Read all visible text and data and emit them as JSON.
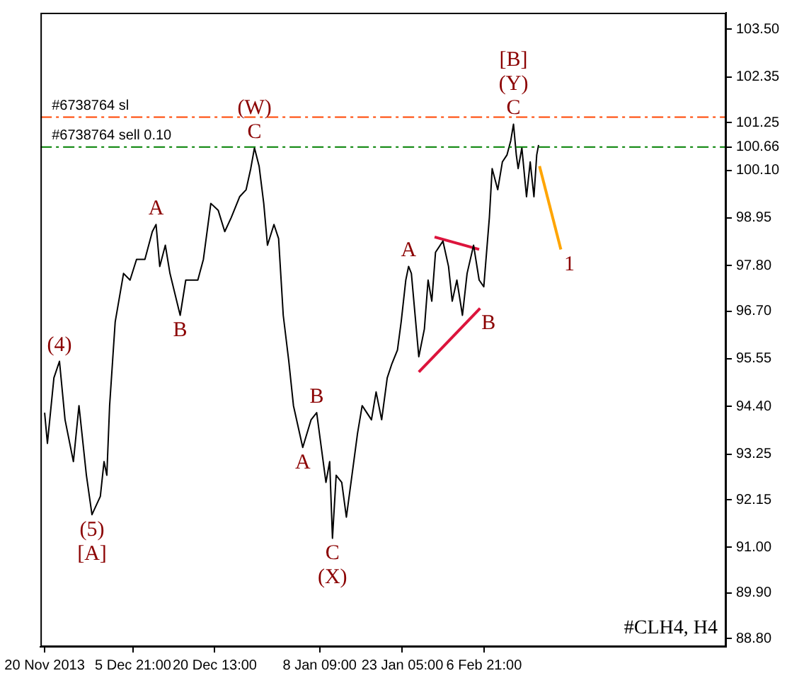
{
  "chart_data": {
    "type": "line",
    "x": [
      "2013-11-20T00:00",
      "2013-11-20T12:00",
      "2013-11-21T16:00",
      "2013-11-22T16:00",
      "2013-11-23T16:00",
      "2013-11-25T04:00",
      "2013-11-26T04:00",
      "2013-11-27T12:00",
      "2013-11-28T12:00",
      "2013-11-30T00:00",
      "2013-11-30T16:00",
      "2013-12-01T04:00",
      "2013-12-01T16:00",
      "2013-12-02T16:00",
      "2013-12-04T04:00",
      "2013-12-05T08:00",
      "2013-12-06T12:00",
      "2013-12-08T00:00",
      "2013-12-09T08:00",
      "2013-12-10T00:00",
      "2013-12-10T16:00",
      "2013-12-11T16:00",
      "2013-12-12T12:00",
      "2013-12-14T08:00",
      "2013-12-15T08:00",
      "2013-12-17T12:00",
      "2013-12-18T12:00",
      "2013-12-19T20:00",
      "2013-12-21T04:00",
      "2013-12-22T08:00",
      "2013-12-23T12:00",
      "2013-12-25T00:00",
      "2013-12-26T04:00",
      "2013-12-27T00:00",
      "2013-12-27T16:00",
      "2013-12-28T12:00",
      "2013-12-29T08:00",
      "2013-12-30T00:00",
      "2013-12-31T04:00",
      "2014-01-01T00:00",
      "2014-01-01T20:00",
      "2014-01-02T20:00",
      "2014-01-03T16:00",
      "2014-01-05T08:00",
      "2014-01-06T20:00",
      "2014-01-07T20:00",
      "2014-01-08T16:00",
      "2014-01-09T12:00",
      "2014-01-10T04:00",
      "2014-01-10T16:00",
      "2014-01-11T08:00",
      "2014-01-12T08:00",
      "2014-01-13T04:00",
      "2014-01-14T04:00",
      "2014-01-15T04:00",
      "2014-01-16T00:00",
      "2014-01-17T16:00",
      "2014-01-18T12:00",
      "2014-01-19T12:00",
      "2014-01-20T12:00",
      "2014-01-21T08:00",
      "2014-01-22T08:00",
      "2014-01-23T00:00",
      "2014-01-23T20:00",
      "2014-01-24T08:00",
      "2014-01-24T20:00",
      "2014-01-26T04:00",
      "2014-01-27T04:00",
      "2014-01-27T20:00",
      "2014-01-28T12:00",
      "2014-01-29T04:00",
      "2014-01-30T12:00",
      "2014-01-31T12:00",
      "2014-02-01T04:00",
      "2014-02-02T00:00",
      "2014-02-03T00:00",
      "2014-02-03T20:00",
      "2014-02-05T00:00",
      "2014-02-06T00:00",
      "2014-02-06T20:00",
      "2014-02-07T20:00",
      "2014-02-08T08:00",
      "2014-02-09T08:00",
      "2014-02-10T04:00",
      "2014-02-11T00:00",
      "2014-02-11T16:00",
      "2014-02-12T04:00",
      "2014-02-12T16:00",
      "2014-02-13T00:00",
      "2014-02-13T16:00",
      "2014-02-14T12:00",
      "2014-02-15T04:00",
      "2014-02-15T20:00",
      "2014-02-16T08:00",
      "2014-02-16T16:00"
    ],
    "series": [
      {
        "color": "#000000",
        "values": [
          94.25,
          93.51,
          95.09,
          95.49,
          94.08,
          93.07,
          94.42,
          92.74,
          91.79,
          92.23,
          93.07,
          92.74,
          94.42,
          96.44,
          97.61,
          97.45,
          97.95,
          97.95,
          98.62,
          98.79,
          97.78,
          98.29,
          97.61,
          96.6,
          97.45,
          97.45,
          97.95,
          99.3,
          99.13,
          98.62,
          98.96,
          99.46,
          99.63,
          100.14,
          100.64,
          100.2,
          99.3,
          98.29,
          98.79,
          98.45,
          96.6,
          95.49,
          94.42,
          93.41,
          94.08,
          94.25,
          93.41,
          92.57,
          93.07,
          91.22,
          92.74,
          92.57,
          91.73,
          92.74,
          93.75,
          94.42,
          94.08,
          94.75,
          94.08,
          95.09,
          95.43,
          95.76,
          96.44,
          97.45,
          97.78,
          97.61,
          95.6,
          96.27,
          97.45,
          96.94,
          98.12,
          98.39,
          97.78,
          96.94,
          97.45,
          96.6,
          97.61,
          98.29,
          97.45,
          97.29,
          98.96,
          100.14,
          99.63,
          100.3,
          100.47,
          100.81,
          101.21,
          100.47,
          100.14,
          100.64,
          99.46,
          100.3,
          99.46,
          100.47,
          100.71
        ]
      },
      {
        "type": "line",
        "color": "#ffa500",
        "x": [
          "2014-02-16T20:00",
          "2014-02-20T16:00"
        ],
        "values": [
          100.2,
          98.19
        ]
      },
      {
        "type": "line",
        "color": "#dc143c",
        "x": [
          "2014-01-29T00:00",
          "2014-02-06T00:00"
        ],
        "values": [
          98.49,
          98.19
        ]
      },
      {
        "type": "line",
        "color": "#dc143c",
        "x": [
          "2014-01-26T04:00",
          "2014-02-06T04:00"
        ],
        "values": [
          95.23,
          96.77
        ]
      }
    ],
    "xlim": [
      "2013-11-19T06:00",
      "2014-03-22T08:00"
    ],
    "xticks": [
      {
        "value": "2013-11-20T00:00",
        "label": "20 Nov 2013"
      },
      {
        "value": "2013-12-05T21:00",
        "label": "5 Dec 21:00"
      },
      {
        "value": "2013-12-20T13:00",
        "label": "20 Dec 13:00"
      },
      {
        "value": "2014-01-08T09:00",
        "label": "8 Jan 09:00"
      },
      {
        "value": "2014-01-23T05:00",
        "label": "23 Jan 05:00"
      },
      {
        "value": "2014-02-06T21:00",
        "label": "6 Feb 21:00"
      }
    ],
    "ylim": [
      88.6,
      103.9
    ],
    "yticks": [
      {
        "value": 88.8,
        "label": "88.80"
      },
      {
        "value": 89.9,
        "label": "89.90"
      },
      {
        "value": 91,
        "label": "91.00"
      },
      {
        "value": 92.15,
        "label": "92.15"
      },
      {
        "value": 93.25,
        "label": "93.25"
      },
      {
        "value": 94.4,
        "label": "94.40"
      },
      {
        "value": 95.55,
        "label": "95.55"
      },
      {
        "value": 96.7,
        "label": "96.70"
      },
      {
        "value": 97.8,
        "label": "97.80"
      },
      {
        "value": 98.95,
        "label": "98.95"
      },
      {
        "value": 100.1,
        "label": "100.10"
      },
      {
        "value": 100.66,
        "label": "100.66"
      },
      {
        "value": 101.25,
        "label": "101.25"
      },
      {
        "value": 102.35,
        "label": "102.35"
      },
      {
        "value": 103.5,
        "label": "103.50"
      }
    ],
    "ref_lines": [
      {
        "axis": "y",
        "value": 101.38,
        "label": "#6738764 sl",
        "color": "#ff4500",
        "line_style": "dashed"
      },
      {
        "axis": "y",
        "value": 100.66,
        "label": "#6738764 sell 0.10",
        "color": "#008000",
        "line_style": "dashed"
      }
    ],
    "annotations": [
      {
        "text": "(W)",
        "x": "2013-12-27T16:00",
        "y": 100.64
      },
      {
        "text": "C",
        "x": "2013-12-27T16:00",
        "y": 100.64
      },
      {
        "text": "A",
        "x": "2013-12-10T00:00",
        "y": 98.79
      },
      {
        "text": "B",
        "x": "2013-12-14T08:00",
        "y": 96.6
      },
      {
        "text": "(4)",
        "x": "2013-11-22T16:00",
        "y": 95.49
      },
      {
        "text": "(5)",
        "x": "2013-11-28T12:00",
        "y": 91.79
      },
      {
        "text": "[A]",
        "x": "2013-11-28T12:00",
        "y": 91.79
      },
      {
        "text": "A",
        "x": "2014-01-05T08:00",
        "y": 93.41
      },
      {
        "text": "B",
        "x": "2014-01-07T20:00",
        "y": 94.25
      },
      {
        "text": "C",
        "x": "2014-01-10T16:00",
        "y": 91.22
      },
      {
        "text": "(X)",
        "x": "2014-01-10T16:00",
        "y": 91.22
      },
      {
        "text": "A",
        "x": "2014-01-24T08:00",
        "y": 97.78
      },
      {
        "text": "B",
        "x": "2014-02-06T04:00",
        "y": 96.77
      },
      {
        "text": "[B]",
        "x": "2014-02-12T04:00",
        "y": 101.21
      },
      {
        "text": "(Y)",
        "x": "2014-02-12T04:00",
        "y": 101.21
      },
      {
        "text": "C",
        "x": "2014-02-12T04:00",
        "y": 101.21
      },
      {
        "text": "1",
        "x": "2014-02-20T16:00",
        "y": 98.19
      },
      "#CLH4, H4"
    ],
    "grid": false,
    "legend": false,
    "marker": "none",
    "line_style": "solid"
  }
}
